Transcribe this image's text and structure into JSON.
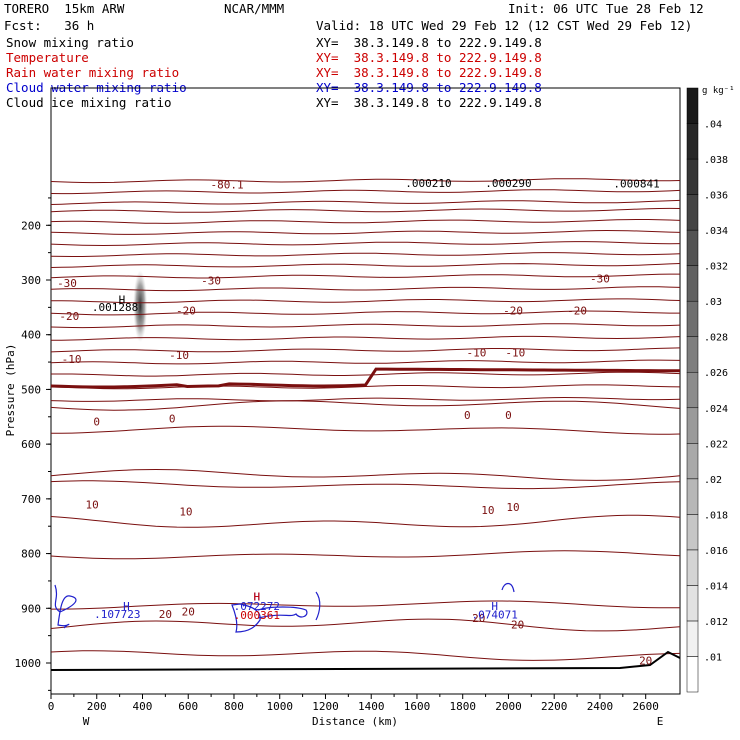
{
  "header": {
    "model": "TORERO  15km ARW",
    "org": "NCAR/MMM",
    "init": "Init: 06 UTC Tue 28 Feb 12",
    "fcst": "Fcst:   36 h",
    "valid": "Valid: 18 UTC Wed 29 Feb 12 (12 CST Wed 29 Feb 12)"
  },
  "fields": [
    {
      "name": "Snow mixing ratio",
      "xy": "XY=  38.3.149.8 to 222.9.149.8",
      "color": "#000000"
    },
    {
      "name": "Temperature",
      "xy": "XY=  38.3.149.8 to 222.9.149.8",
      "color": "#cc0000"
    },
    {
      "name": "Rain water mixing ratio",
      "xy": "XY=  38.3.149.8 to 222.9.149.8",
      "color": "#cc0000"
    },
    {
      "name": "Cloud water mixing ratio",
      "xy": "XY=  38.3.149.8 to 222.9.149.8",
      "color": "#0000cc"
    },
    {
      "name": "Cloud ice mixing ratio",
      "xy": "XY=  38.3.149.8 to 222.9.149.8",
      "color": "#000000"
    }
  ],
  "colors": {
    "temperature": "#7a0f0f",
    "cloud_water": "#2020cc",
    "rain_water": "#cc0000",
    "snow": "#444444"
  },
  "chart_data": {
    "type": "contour",
    "xlabel": "Distance (km)",
    "ylabel": "Pressure (hPa)",
    "xlim": [
      0,
      2750
    ],
    "ylim": [
      1050,
      100
    ],
    "xticks": [
      0,
      200,
      400,
      600,
      800,
      1000,
      1200,
      1400,
      1600,
      1800,
      2000,
      2200,
      2400,
      2600
    ],
    "yticks": [
      200,
      300,
      400,
      500,
      600,
      700,
      800,
      900,
      1000
    ],
    "west_label": "W",
    "east_label": "E",
    "colorbar": {
      "unit": "g kg⁻¹",
      "ticks": [
        ".01",
        ".012",
        ".014",
        ".016",
        ".018",
        ".02",
        ".022",
        ".024",
        ".026",
        ".028",
        ".03",
        ".032",
        ".034",
        ".036",
        ".038",
        ".04"
      ]
    },
    "temperature_labels": [
      {
        "text": "-30",
        "x": 70,
        "p": 313
      },
      {
        "text": "-30",
        "x": 700,
        "p": 308
      },
      {
        "text": "-30",
        "x": 2400,
        "p": 305
      },
      {
        "text": "-20",
        "x": 80,
        "p": 373
      },
      {
        "text": "-20",
        "x": 590,
        "p": 363
      },
      {
        "text": "-20",
        "x": 2020,
        "p": 363
      },
      {
        "text": "-20",
        "x": 2300,
        "p": 363
      },
      {
        "text": "-10",
        "x": 90,
        "p": 452
      },
      {
        "text": "-10",
        "x": 560,
        "p": 444
      },
      {
        "text": "-10",
        "x": 1860,
        "p": 440
      },
      {
        "text": "-10",
        "x": 2030,
        "p": 440
      },
      {
        "text": "-80.1",
        "x": 770,
        "p": 133
      },
      {
        "text": "0",
        "x": 200,
        "p": 566
      },
      {
        "text": "0",
        "x": 530,
        "p": 560
      },
      {
        "text": "0",
        "x": 1820,
        "p": 554
      },
      {
        "text": "0",
        "x": 2000,
        "p": 554
      },
      {
        "text": "10",
        "x": 180,
        "p": 718
      },
      {
        "text": "10",
        "x": 590,
        "p": 730
      },
      {
        "text": "10",
        "x": 1910,
        "p": 728
      },
      {
        "text": "10",
        "x": 2020,
        "p": 722
      },
      {
        "text": "20",
        "x": 500,
        "p": 918
      },
      {
        "text": "20",
        "x": 600,
        "p": 913
      },
      {
        "text": "20",
        "x": 1870,
        "p": 925
      },
      {
        "text": "20",
        "x": 2040,
        "p": 937
      },
      {
        "text": "20",
        "x": 2600,
        "p": 1003
      }
    ],
    "maxima": [
      {
        "h_x": 310,
        "h_p": 343,
        "value": ".001288",
        "v_x": 280,
        "v_p": 357,
        "color": "#000000"
      },
      {
        "h_x": 330,
        "h_p": 903,
        "value": ".107723",
        "v_x": 290,
        "v_p": 918,
        "color": "#2020cc"
      },
      {
        "h_x": 900,
        "h_p": 886,
        "value": ".072272",
        "v_x": 900,
        "v_p": 903,
        "color": "#2020cc"
      },
      {
        "h_x": 900,
        "h_p": 886,
        "value": ".000361",
        "v_x": 900,
        "v_p": 920,
        "color": "#cc0000"
      },
      {
        "h_x": 1940,
        "h_p": 903,
        "value": ".074071",
        "v_x": 1940,
        "v_p": 919,
        "color": "#2020cc"
      },
      {
        "h_x": 1650,
        "h_p": 130,
        "value": ".000210",
        "v_x": 1650,
        "v_p": 130,
        "color": "#000000"
      },
      {
        "h_x": 2000,
        "h_p": 130,
        "value": ".000290",
        "v_x": 2000,
        "v_p": 130,
        "color": "#000000"
      },
      {
        "h_x": 2560,
        "h_p": 131,
        "value": ".000841",
        "v_x": 2560,
        "v_p": 131,
        "color": "#000000"
      }
    ]
  }
}
